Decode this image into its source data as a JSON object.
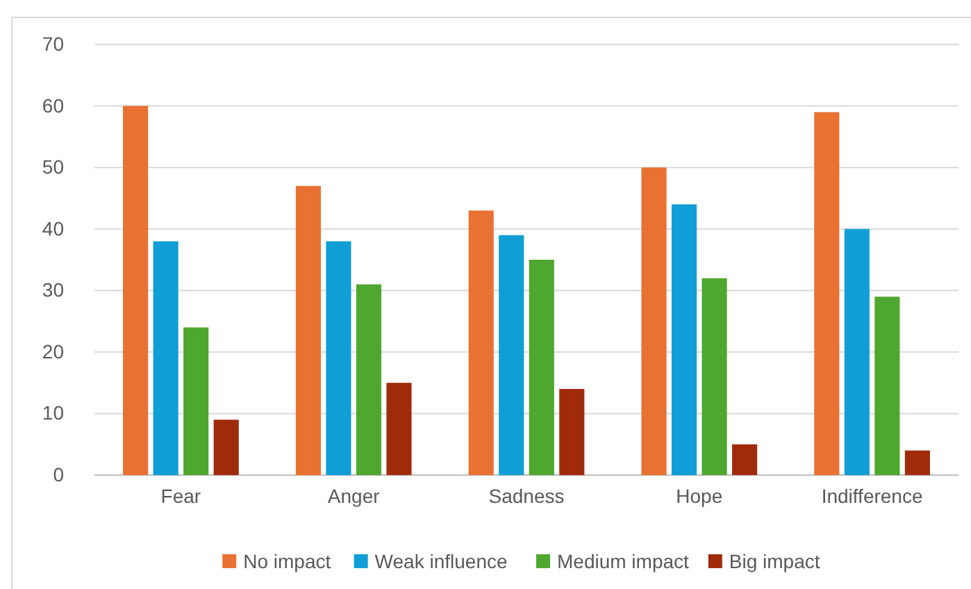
{
  "chart_data": {
    "type": "bar",
    "categories": [
      "Fear",
      "Anger",
      "Sadness",
      "Hope",
      "Indifference"
    ],
    "series": [
      {
        "name": "No impact",
        "color": "#e97132",
        "values": [
          60,
          47,
          43,
          50,
          59
        ]
      },
      {
        "name": "Weak influence",
        "color": "#0f9ed5",
        "values": [
          38,
          38,
          39,
          44,
          40
        ]
      },
      {
        "name": "Medium impact",
        "color": "#4ea72e",
        "values": [
          24,
          31,
          35,
          32,
          29
        ]
      },
      {
        "name": "Big impact",
        "color": "#a02b0b",
        "values": [
          9,
          15,
          14,
          5,
          4
        ]
      }
    ],
    "ylim": [
      0,
      70
    ],
    "yticks": [
      0,
      10,
      20,
      30,
      40,
      50,
      60,
      70
    ],
    "grid": "y",
    "legend": "bottom"
  }
}
